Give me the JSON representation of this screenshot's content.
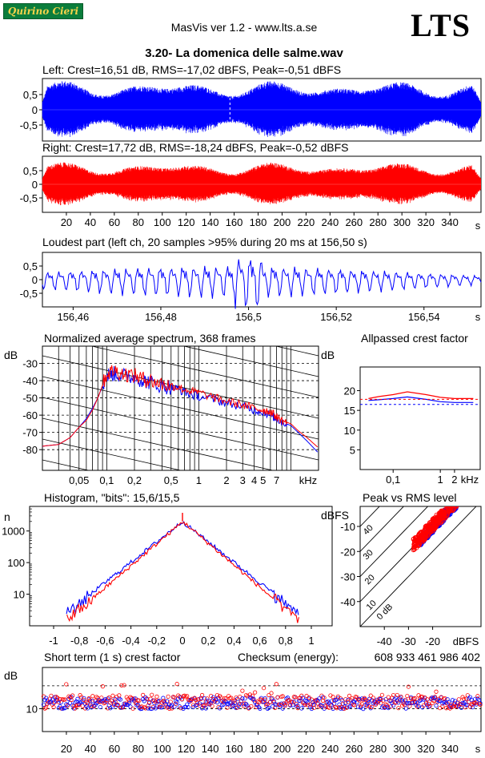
{
  "header": {
    "logo_text": "Quirino Cieri",
    "app_title": "MasVis ver 1.2 - www.lts.a.se",
    "brand": "LTS",
    "file_title": "3.20- La domenica delle salme.wav"
  },
  "colors": {
    "left": "#0000ff",
    "right": "#ff0000",
    "grid": "#000000"
  },
  "chart_data": [
    {
      "id": "left-waveform",
      "type": "area",
      "title": "Left: Crest=16,51 dB, RMS=-17,02 dBFS, Peak=-0,51 dBFS",
      "yticks": [
        "0,5",
        "0",
        "-0,5"
      ],
      "ylim": [
        -1,
        1
      ],
      "xlim": [
        0,
        366
      ],
      "series": [
        {
          "name": "Left",
          "color": "#0000ff"
        }
      ]
    },
    {
      "id": "right-waveform",
      "type": "area",
      "title": "Right: Crest=17,72 dB, RMS=-18,24 dBFS, Peak=-0,52 dBFS",
      "yticks": [
        "0,5",
        "0",
        "-0,5"
      ],
      "ylim": [
        -1,
        1
      ],
      "xlim": [
        0,
        366
      ],
      "xticks": [
        "20",
        "40",
        "60",
        "80",
        "100",
        "120",
        "140",
        "160",
        "180",
        "200",
        "220",
        "240",
        "260",
        "280",
        "300",
        "320",
        "340"
      ],
      "xunit": "s",
      "series": [
        {
          "name": "Right",
          "color": "#ff0000"
        }
      ]
    },
    {
      "id": "loudest-part",
      "type": "line",
      "title": "Loudest part (left  ch, 20 samples >95% during 20 ms at 156,50 s)",
      "yticks": [
        "0,5",
        "0",
        "-0,5"
      ],
      "xlim": [
        156.453,
        156.553
      ],
      "xticks": [
        "156,46",
        "156,48",
        "156,5",
        "156,52",
        "156,54"
      ],
      "xunit": "s",
      "series": [
        {
          "name": "Left",
          "color": "#0000ff"
        }
      ]
    },
    {
      "id": "spectrum",
      "type": "line",
      "title": "Normalized average spectrum, 368 frames",
      "ylabel": "dB",
      "yticks": [
        "-30",
        "-40",
        "-50",
        "-60",
        "-70",
        "-80"
      ],
      "xticks": [
        "0,05",
        "0,1",
        "0,2",
        "0,5",
        "1",
        "2",
        "3",
        "4",
        "5",
        "7"
      ],
      "xunit": "kHz",
      "x": [
        0.02,
        0.03,
        0.04,
        0.05,
        0.06,
        0.07,
        0.08,
        0.1,
        0.12,
        0.15,
        0.2,
        0.25,
        0.3,
        0.4,
        0.5,
        0.6,
        0.8,
        1,
        1.5,
        2,
        3,
        4,
        5,
        6,
        7,
        8,
        10,
        12,
        15,
        20
      ],
      "series": [
        {
          "name": "Left",
          "color": "#0000ff",
          "values": [
            -78,
            -77,
            -73,
            -67,
            -62,
            -56,
            -50,
            -37,
            -36,
            -37,
            -38,
            -40,
            -41,
            -43,
            -44,
            -45,
            -48,
            -49,
            -51,
            -53,
            -55,
            -57,
            -58,
            -60,
            -62,
            -64,
            -66,
            -70,
            -75,
            -82
          ]
        },
        {
          "name": "Right",
          "color": "#ff0000",
          "values": [
            -78,
            -77,
            -73,
            -67,
            -63,
            -57,
            -50,
            -36,
            -34,
            -36,
            -37,
            -39,
            -40,
            -42,
            -43,
            -44,
            -46,
            -47,
            -50,
            -52,
            -54,
            -56,
            -57,
            -58,
            -61,
            -63,
            -65,
            -69,
            -73,
            -79
          ]
        }
      ]
    },
    {
      "id": "allpassed-crest",
      "type": "line",
      "title": "Allpassed crest factor",
      "ylabel": "dB",
      "yticks": [
        "20",
        "15",
        "10",
        "5"
      ],
      "xticks": [
        "0,1",
        "1",
        "2"
      ],
      "xunit": "kHz",
      "x": [
        0.03,
        0.05,
        0.1,
        0.2,
        0.5,
        1,
        2,
        5
      ],
      "series": [
        {
          "name": "Right",
          "color": "#ff0000",
          "values": [
            18,
            18.5,
            19,
            19.7,
            19,
            18.3,
            18,
            18
          ]
        },
        {
          "name": "Left",
          "color": "#0000ff",
          "values": [
            17.5,
            17.7,
            18,
            18.4,
            17.8,
            17.2,
            17,
            17
          ]
        }
      ]
    },
    {
      "id": "histogram",
      "type": "line",
      "title": "Histogram, \"bits\": 15,6/15,5",
      "ylabel": "n",
      "yticks": [
        "1000",
        "100",
        "10"
      ],
      "xticks": [
        "-1",
        "-0,8",
        "-0,6",
        "-0,4",
        "-0,2",
        "0",
        "0,2",
        "0,4",
        "0,6",
        "0,8",
        "1"
      ],
      "series": [
        {
          "name": "Left",
          "color": "#0000ff"
        },
        {
          "name": "Right",
          "color": "#ff0000"
        }
      ]
    },
    {
      "id": "peak-vs-rms",
      "type": "scatter",
      "title": "Peak vs RMS level",
      "ylabel": "dBFS",
      "xunit": "dBFS",
      "yticks": [
        "-10",
        "-20",
        "-30",
        "-40"
      ],
      "xticks": [
        "-40",
        "-30",
        "-20"
      ],
      "diagonal_labels": [
        "40",
        "30",
        "20",
        "10",
        "0 dB"
      ],
      "series": [
        {
          "name": "Left",
          "color": "#0000ff"
        },
        {
          "name": "Right",
          "color": "#ff0000"
        }
      ]
    },
    {
      "id": "short-term-crest",
      "type": "scatter",
      "title": "Short term (1 s) crest factor",
      "ylabel": "dB",
      "yticks": [
        "10"
      ],
      "xticks": [
        "20",
        "40",
        "60",
        "80",
        "100",
        "120",
        "140",
        "160",
        "180",
        "200",
        "220",
        "240",
        "260",
        "280",
        "300",
        "320",
        "340"
      ],
      "xunit": "s",
      "checksum_label": "Checksum (energy):",
      "checksum_value": "608 933 461 986 402",
      "series": [
        {
          "name": "Left",
          "color": "#0000ff"
        },
        {
          "name": "Right",
          "color": "#ff0000"
        }
      ]
    }
  ]
}
